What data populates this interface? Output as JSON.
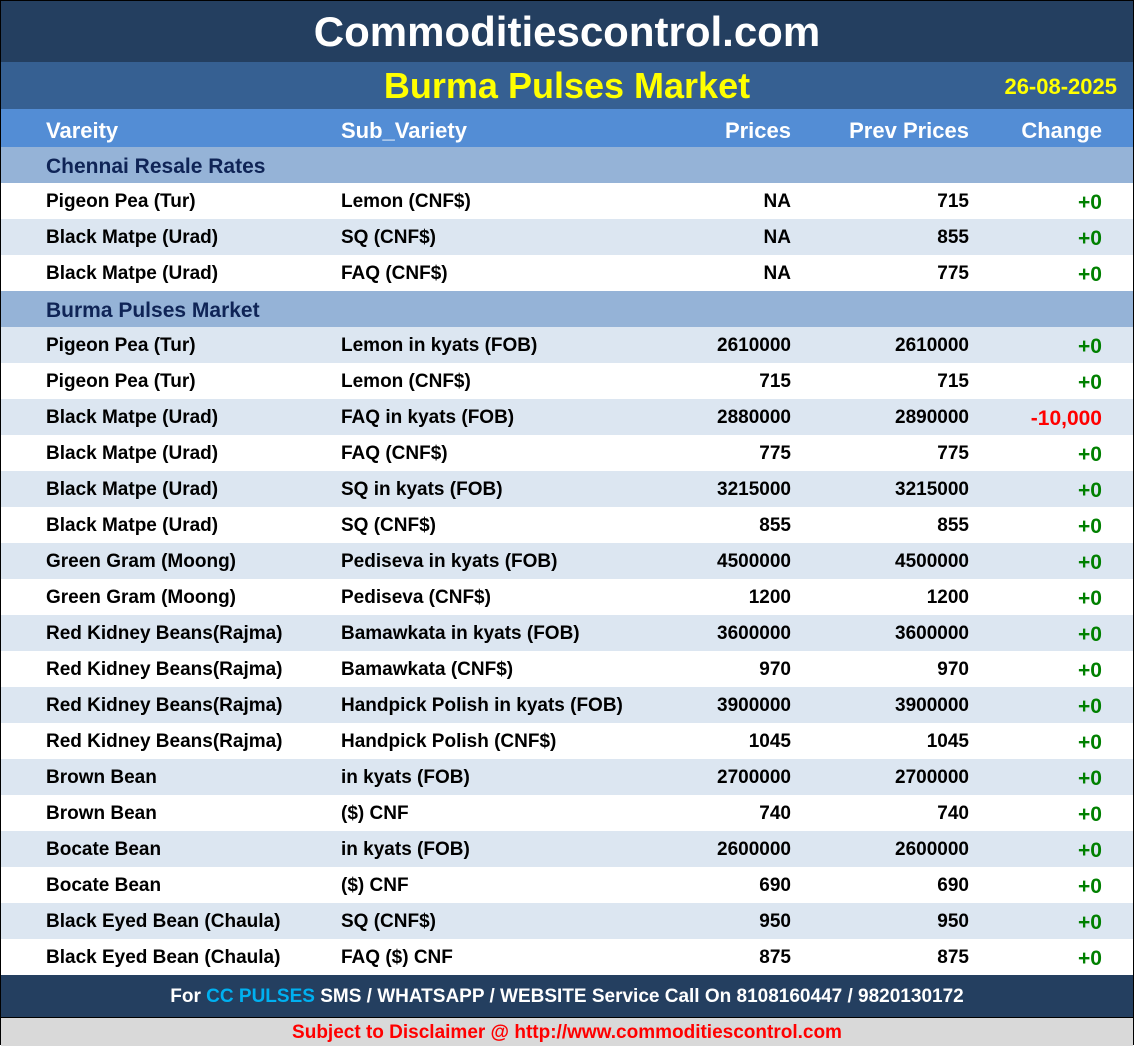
{
  "site_title": "Commoditiescontrol.com",
  "market_title": "Burma Pulses Market",
  "date": "26-08-2025",
  "headers": [
    "Vareity",
    "Sub_Variety",
    "Prices",
    "Prev Prices",
    "Change"
  ],
  "sections": [
    {
      "title": "Chennai Resale Rates",
      "rows": [
        [
          "Pigeon Pea (Tur)",
          "Lemon (CNF$)",
          "NA",
          "715",
          "+0"
        ],
        [
          "Black Matpe (Urad)",
          "SQ (CNF$)",
          "NA",
          "855",
          "+0"
        ],
        [
          "Black Matpe (Urad)",
          "FAQ (CNF$)",
          "NA",
          "775",
          "+0"
        ]
      ]
    },
    {
      "title": "Burma Pulses Market",
      "rows": [
        [
          "Pigeon Pea (Tur)",
          "Lemon in kyats (FOB)",
          "2610000",
          "2610000",
          "+0"
        ],
        [
          "Pigeon Pea (Tur)",
          "Lemon (CNF$)",
          "715",
          "715",
          "+0"
        ],
        [
          "Black Matpe (Urad)",
          "FAQ in kyats (FOB)",
          "2880000",
          "2890000",
          "-10,000"
        ],
        [
          "Black Matpe (Urad)",
          "FAQ (CNF$)",
          "775",
          "775",
          "+0"
        ],
        [
          "Black Matpe (Urad)",
          "SQ in kyats (FOB)",
          "3215000",
          "3215000",
          "+0"
        ],
        [
          "Black Matpe (Urad)",
          "SQ (CNF$)",
          "855",
          "855",
          "+0"
        ],
        [
          "Green Gram (Moong)",
          "Pediseva in kyats (FOB)",
          "4500000",
          "4500000",
          "+0"
        ],
        [
          "Green Gram (Moong)",
          "Pediseva (CNF$)",
          "1200",
          "1200",
          "+0"
        ],
        [
          "Red Kidney Beans(Rajma)",
          "Bamawkata in kyats (FOB)",
          "3600000",
          "3600000",
          "+0"
        ],
        [
          "Red Kidney Beans(Rajma)",
          "Bamawkata (CNF$)",
          "970",
          "970",
          "+0"
        ],
        [
          "Red Kidney Beans(Rajma)",
          "Handpick Polish in kyats (FOB)",
          "3900000",
          "3900000",
          "+0"
        ],
        [
          "Red Kidney Beans(Rajma)",
          "Handpick Polish (CNF$)",
          "1045",
          "1045",
          "+0"
        ],
        [
          "Brown Bean",
          "in kyats (FOB)",
          "2700000",
          "2700000",
          "+0"
        ],
        [
          "Brown Bean",
          "($) CNF",
          "740",
          "740",
          "+0"
        ],
        [
          "Bocate Bean",
          "in kyats (FOB)",
          "2600000",
          "2600000",
          "+0"
        ],
        [
          "Bocate Bean",
          "($) CNF",
          "690",
          "690",
          "+0"
        ],
        [
          "Black Eyed Bean (Chaula)",
          "SQ (CNF$)",
          "950",
          "950",
          "+0"
        ],
        [
          "Black Eyed Bean (Chaula)",
          "FAQ ($) CNF",
          "875",
          "875",
          "+0"
        ]
      ]
    }
  ],
  "footer": {
    "pre": "For ",
    "highlight": "CC PULSES",
    "post": " SMS / WHATSAPP / WEBSITE Service Call On 8108160447 / 9820130172"
  },
  "disclaimer": "Subject to Disclaimer @  http://www.commoditiescontrol.com",
  "colors": {
    "positive": "#008000",
    "negative": "#ff0000",
    "header": "#243f60",
    "accent": "#ffff00"
  }
}
